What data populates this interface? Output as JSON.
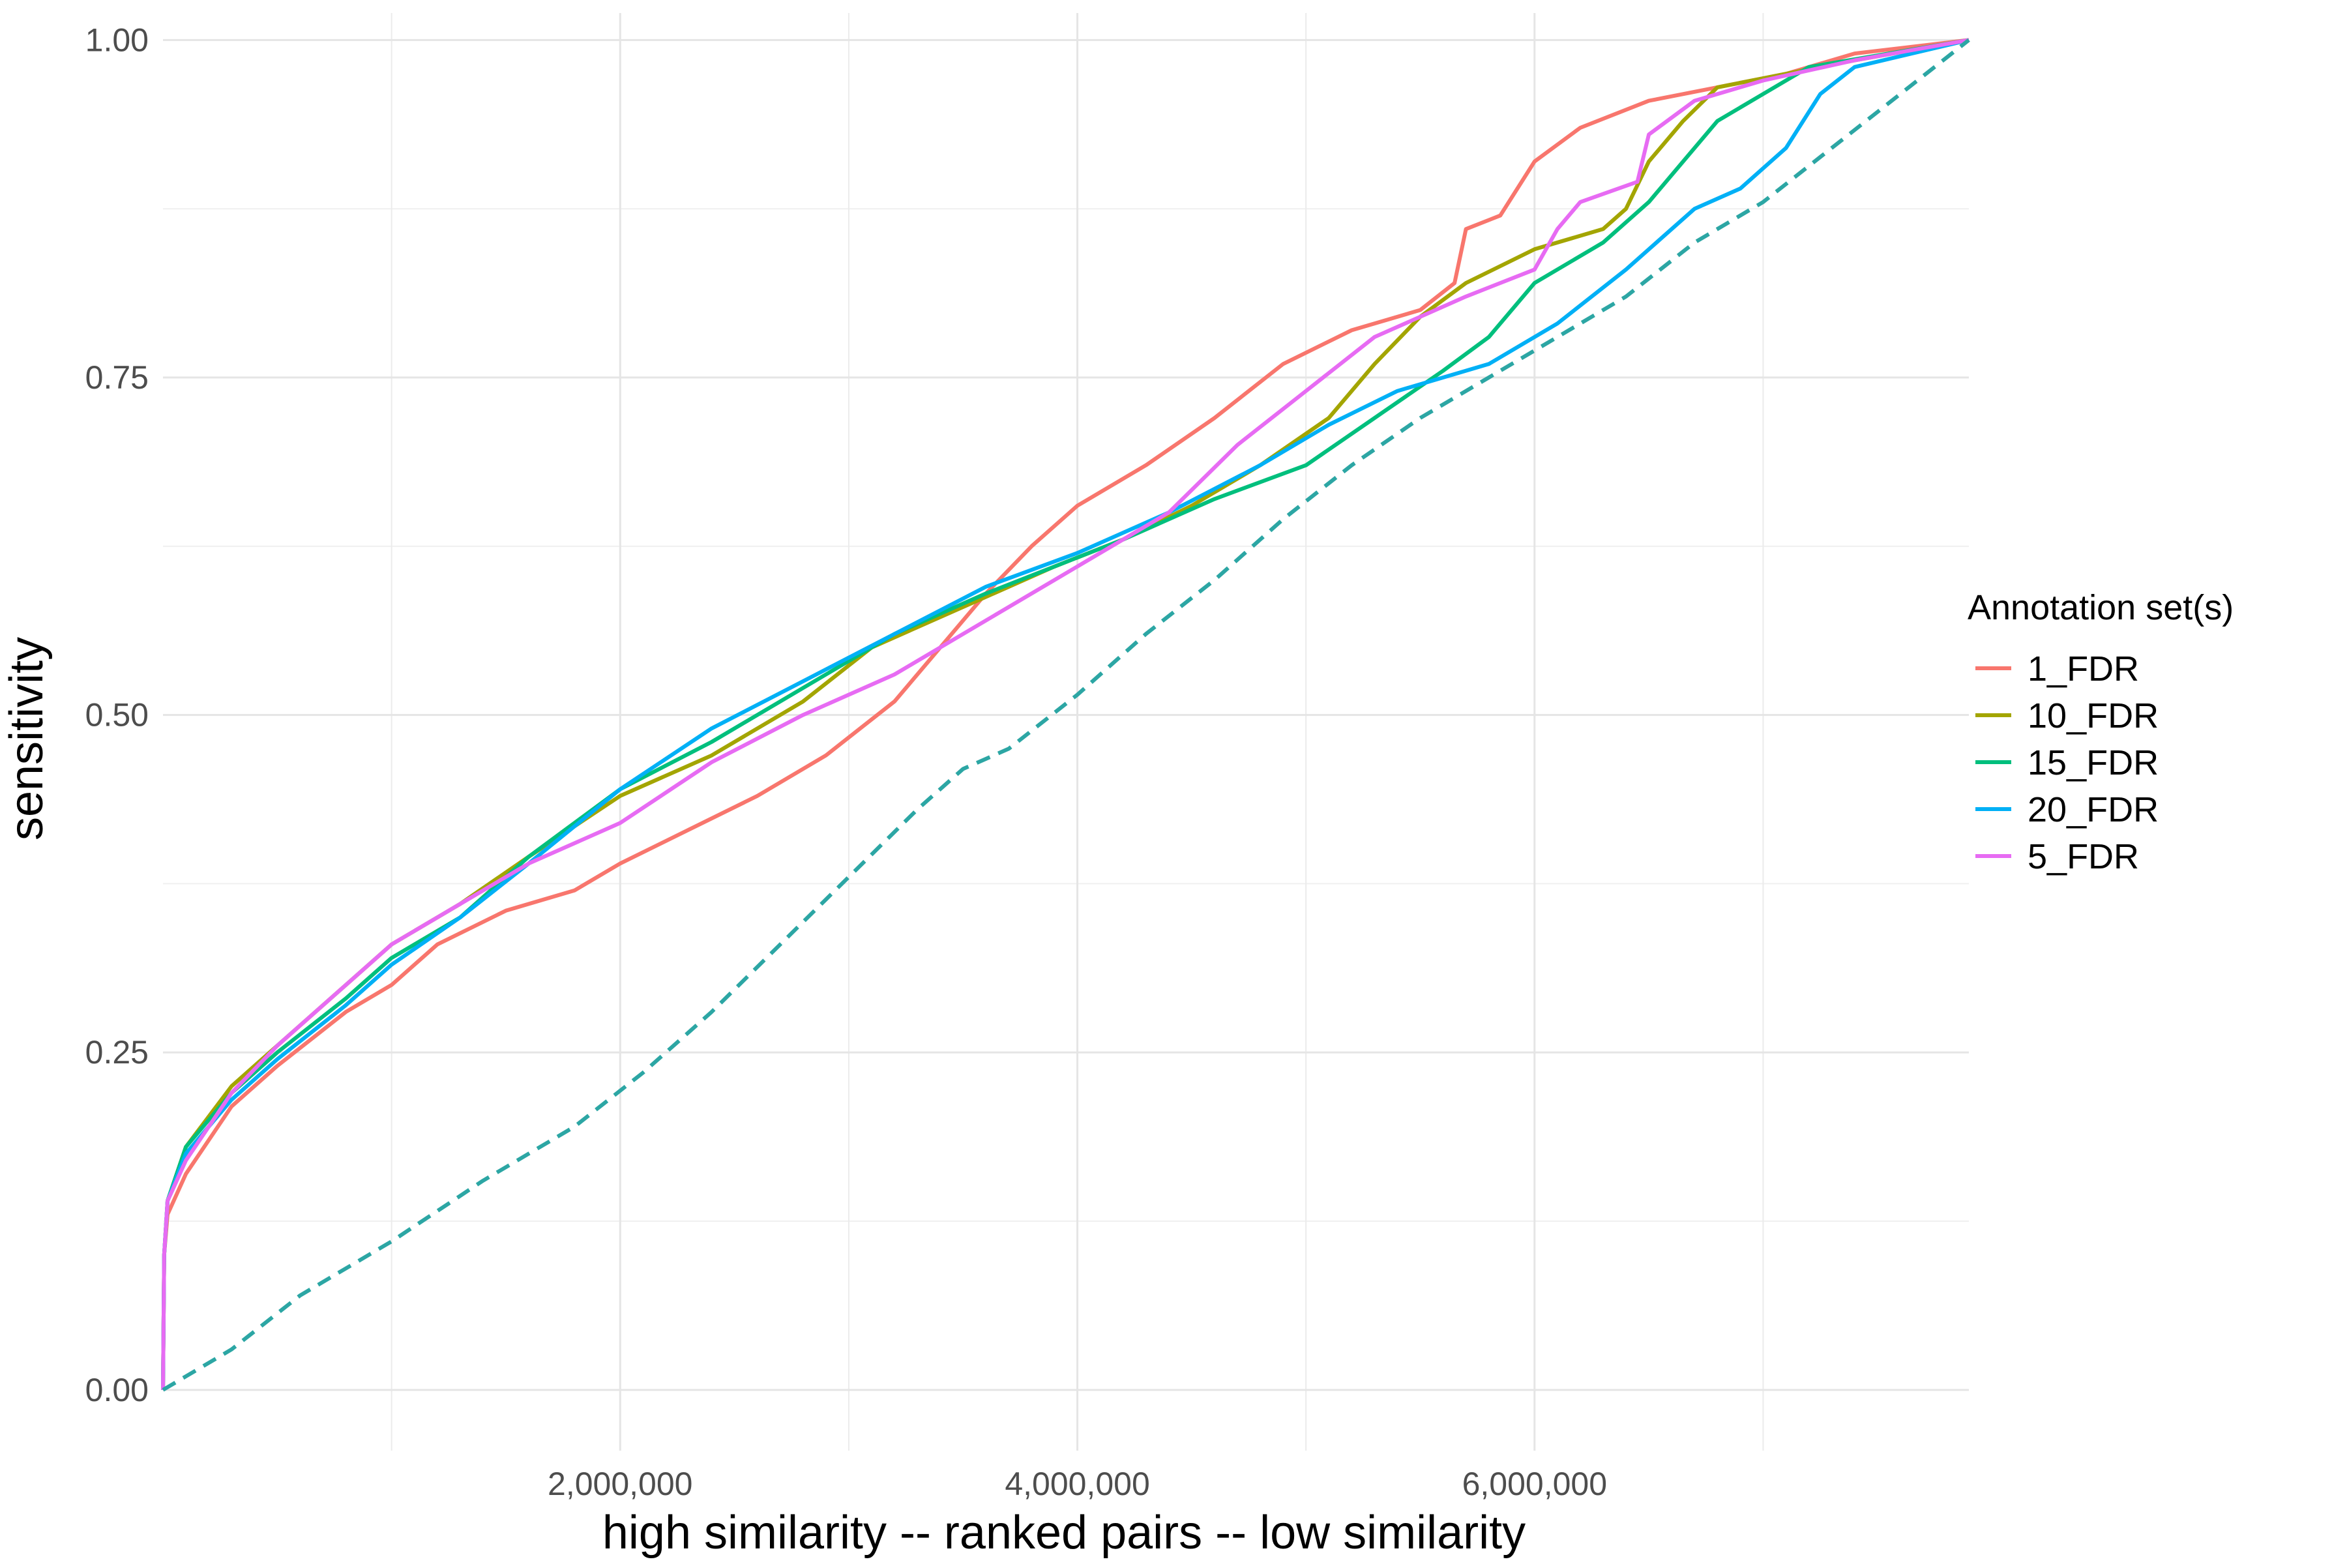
{
  "chart_data": {
    "type": "line",
    "title": "",
    "xlabel": "high similarity -- ranked pairs -- low similarity",
    "ylabel": "sensitivity",
    "xlim": [
      0,
      7900000
    ],
    "ylim": [
      -0.045,
      1.02
    ],
    "x_ticks": [
      2000000,
      4000000,
      6000000
    ],
    "x_tick_labels": [
      "2,000,000",
      "4,000,000",
      "6,000,000"
    ],
    "x_minor_ticks": [
      1000000,
      3000000,
      5000000,
      7000000
    ],
    "y_ticks": [
      0.0,
      0.25,
      0.5,
      0.75,
      1.0
    ],
    "y_tick_labels": [
      "0.00",
      "0.25",
      "0.50",
      "0.75",
      "1.00"
    ],
    "y_minor_ticks": [
      0.125,
      0.375,
      0.625,
      0.875
    ],
    "grid": true,
    "legend": {
      "title": "Annotation set(s)",
      "position": "right"
    },
    "series": [
      {
        "name": "1_FDR",
        "color": "#F8766D",
        "dash": "solid",
        "points": [
          [
            0,
            0
          ],
          [
            5000,
            0.1
          ],
          [
            20000,
            0.13
          ],
          [
            100000,
            0.16
          ],
          [
            300000,
            0.21
          ],
          [
            500000,
            0.24
          ],
          [
            800000,
            0.28
          ],
          [
            1000000,
            0.3
          ],
          [
            1200000,
            0.33
          ],
          [
            1500000,
            0.355
          ],
          [
            1800000,
            0.37
          ],
          [
            2000000,
            0.39
          ],
          [
            2300000,
            0.415
          ],
          [
            2600000,
            0.44
          ],
          [
            2900000,
            0.47
          ],
          [
            3200000,
            0.51
          ],
          [
            3400000,
            0.55
          ],
          [
            3600000,
            0.59
          ],
          [
            3800000,
            0.625
          ],
          [
            4000000,
            0.655
          ],
          [
            4300000,
            0.685
          ],
          [
            4600000,
            0.72
          ],
          [
            4900000,
            0.76
          ],
          [
            5200000,
            0.785
          ],
          [
            5500000,
            0.8
          ],
          [
            5650000,
            0.82
          ],
          [
            5700000,
            0.86
          ],
          [
            5850000,
            0.87
          ],
          [
            6000000,
            0.91
          ],
          [
            6200000,
            0.935
          ],
          [
            6500000,
            0.955
          ],
          [
            6800000,
            0.965
          ],
          [
            7100000,
            0.975
          ],
          [
            7400000,
            0.99
          ],
          [
            7900000,
            1.0
          ]
        ]
      },
      {
        "name": "10_FDR",
        "color": "#A3A500",
        "dash": "solid",
        "points": [
          [
            0,
            0
          ],
          [
            5000,
            0.1
          ],
          [
            20000,
            0.14
          ],
          [
            100000,
            0.18
          ],
          [
            300000,
            0.225
          ],
          [
            500000,
            0.255
          ],
          [
            800000,
            0.3
          ],
          [
            1000000,
            0.33
          ],
          [
            1300000,
            0.36
          ],
          [
            1600000,
            0.395
          ],
          [
            2000000,
            0.44
          ],
          [
            2400000,
            0.47
          ],
          [
            2800000,
            0.51
          ],
          [
            3100000,
            0.55
          ],
          [
            3500000,
            0.58
          ],
          [
            3900000,
            0.61
          ],
          [
            4200000,
            0.63
          ],
          [
            4500000,
            0.655
          ],
          [
            4800000,
            0.685
          ],
          [
            5100000,
            0.72
          ],
          [
            5300000,
            0.76
          ],
          [
            5500000,
            0.795
          ],
          [
            5700000,
            0.82
          ],
          [
            6000000,
            0.845
          ],
          [
            6300000,
            0.86
          ],
          [
            6400000,
            0.875
          ],
          [
            6500000,
            0.91
          ],
          [
            6650000,
            0.94
          ],
          [
            6800000,
            0.965
          ],
          [
            7100000,
            0.975
          ],
          [
            7400000,
            0.985
          ],
          [
            7900000,
            1.0
          ]
        ]
      },
      {
        "name": "15_FDR",
        "color": "#00BF7D",
        "dash": "solid",
        "points": [
          [
            0,
            0
          ],
          [
            5000,
            0.1
          ],
          [
            20000,
            0.14
          ],
          [
            100000,
            0.18
          ],
          [
            300000,
            0.22
          ],
          [
            500000,
            0.25
          ],
          [
            800000,
            0.29
          ],
          [
            1000000,
            0.32
          ],
          [
            1300000,
            0.35
          ],
          [
            1600000,
            0.395
          ],
          [
            2000000,
            0.445
          ],
          [
            2400000,
            0.48
          ],
          [
            2800000,
            0.52
          ],
          [
            3200000,
            0.56
          ],
          [
            3600000,
            0.59
          ],
          [
            3900000,
            0.61
          ],
          [
            4200000,
            0.63
          ],
          [
            4600000,
            0.66
          ],
          [
            5000000,
            0.685
          ],
          [
            5300000,
            0.72
          ],
          [
            5600000,
            0.755
          ],
          [
            5800000,
            0.78
          ],
          [
            6000000,
            0.82
          ],
          [
            6300000,
            0.85
          ],
          [
            6500000,
            0.88
          ],
          [
            6650000,
            0.91
          ],
          [
            6800000,
            0.94
          ],
          [
            7000000,
            0.96
          ],
          [
            7200000,
            0.98
          ],
          [
            7900000,
            1.0
          ]
        ]
      },
      {
        "name": "20_FDR",
        "color": "#00B0F6",
        "dash": "solid",
        "points": [
          [
            0,
            0
          ],
          [
            5000,
            0.1
          ],
          [
            20000,
            0.14
          ],
          [
            100000,
            0.175
          ],
          [
            300000,
            0.215
          ],
          [
            500000,
            0.245
          ],
          [
            800000,
            0.285
          ],
          [
            1000000,
            0.315
          ],
          [
            1300000,
            0.35
          ],
          [
            1600000,
            0.39
          ],
          [
            2000000,
            0.445
          ],
          [
            2400000,
            0.49
          ],
          [
            2800000,
            0.525
          ],
          [
            3200000,
            0.56
          ],
          [
            3600000,
            0.595
          ],
          [
            4000000,
            0.62
          ],
          [
            4400000,
            0.65
          ],
          [
            4800000,
            0.685
          ],
          [
            5100000,
            0.715
          ],
          [
            5400000,
            0.74
          ],
          [
            5800000,
            0.76
          ],
          [
            6100000,
            0.79
          ],
          [
            6400000,
            0.83
          ],
          [
            6700000,
            0.875
          ],
          [
            6900000,
            0.89
          ],
          [
            7100000,
            0.92
          ],
          [
            7250000,
            0.96
          ],
          [
            7400000,
            0.98
          ],
          [
            7900000,
            1.0
          ]
        ]
      },
      {
        "name": "5_FDR",
        "color": "#E76BF3",
        "dash": "solid",
        "points": [
          [
            0,
            0
          ],
          [
            5000,
            0.1
          ],
          [
            20000,
            0.14
          ],
          [
            100000,
            0.17
          ],
          [
            300000,
            0.22
          ],
          [
            500000,
            0.255
          ],
          [
            800000,
            0.3
          ],
          [
            1000000,
            0.33
          ],
          [
            1300000,
            0.36
          ],
          [
            1600000,
            0.39
          ],
          [
            2000000,
            0.42
          ],
          [
            2400000,
            0.465
          ],
          [
            2800000,
            0.5
          ],
          [
            3200000,
            0.53
          ],
          [
            3600000,
            0.57
          ],
          [
            4000000,
            0.61
          ],
          [
            4400000,
            0.65
          ],
          [
            4700000,
            0.7
          ],
          [
            5000000,
            0.74
          ],
          [
            5300000,
            0.78
          ],
          [
            5700000,
            0.81
          ],
          [
            6000000,
            0.83
          ],
          [
            6100000,
            0.86
          ],
          [
            6200000,
            0.88
          ],
          [
            6450000,
            0.895
          ],
          [
            6500000,
            0.93
          ],
          [
            6700000,
            0.955
          ],
          [
            7000000,
            0.97
          ],
          [
            7400000,
            0.985
          ],
          [
            7900000,
            1.0
          ]
        ]
      },
      {
        "name": "",
        "color": "#2CA6A4",
        "dash": "dashed",
        "points": [
          [
            0,
            0
          ],
          [
            100000,
            0.01
          ],
          [
            300000,
            0.03
          ],
          [
            600000,
            0.07
          ],
          [
            1000000,
            0.11
          ],
          [
            1400000,
            0.155
          ],
          [
            1800000,
            0.195
          ],
          [
            2100000,
            0.235
          ],
          [
            2400000,
            0.28
          ],
          [
            2700000,
            0.33
          ],
          [
            3000000,
            0.38
          ],
          [
            3300000,
            0.43
          ],
          [
            3500000,
            0.46
          ],
          [
            3700000,
            0.475
          ],
          [
            4000000,
            0.515
          ],
          [
            4300000,
            0.56
          ],
          [
            4600000,
            0.6
          ],
          [
            4900000,
            0.645
          ],
          [
            5200000,
            0.685
          ],
          [
            5500000,
            0.72
          ],
          [
            5800000,
            0.75
          ],
          [
            6100000,
            0.78
          ],
          [
            6400000,
            0.81
          ],
          [
            6700000,
            0.85
          ],
          [
            7000000,
            0.88
          ],
          [
            7300000,
            0.92
          ],
          [
            7600000,
            0.96
          ],
          [
            7900000,
            1.0
          ]
        ]
      }
    ]
  }
}
